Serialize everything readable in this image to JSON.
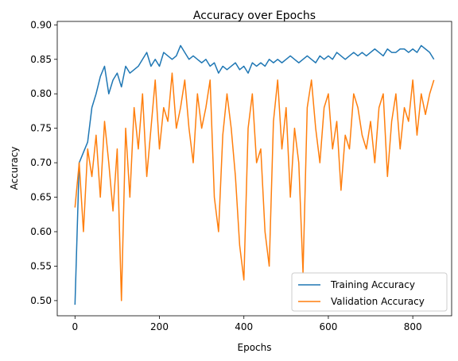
{
  "chart_data": {
    "type": "line",
    "title": "Accuracy over Epochs",
    "xlabel": "Epochs",
    "ylabel": "Accuracy",
    "xlim": [
      -42,
      892
    ],
    "ylim": [
      0.478,
      0.905
    ],
    "xticks": [
      0,
      200,
      400,
      600,
      800
    ],
    "yticks": [
      0.5,
      0.55,
      0.6,
      0.65,
      0.7,
      0.75,
      0.8,
      0.85,
      0.9
    ],
    "legend_position": "lower-right",
    "grid": false,
    "x_step": 10,
    "series": [
      {
        "name": "Training Accuracy",
        "color": "#1f77b4",
        "values": [
          0.494,
          0.7,
          0.715,
          0.73,
          0.78,
          0.8,
          0.825,
          0.84,
          0.8,
          0.82,
          0.83,
          0.81,
          0.84,
          0.83,
          0.835,
          0.84,
          0.85,
          0.86,
          0.84,
          0.85,
          0.84,
          0.86,
          0.855,
          0.85,
          0.855,
          0.87,
          0.86,
          0.85,
          0.855,
          0.85,
          0.845,
          0.85,
          0.84,
          0.845,
          0.83,
          0.84,
          0.835,
          0.84,
          0.845,
          0.835,
          0.84,
          0.83,
          0.845,
          0.84,
          0.845,
          0.84,
          0.85,
          0.845,
          0.85,
          0.845,
          0.85,
          0.855,
          0.85,
          0.845,
          0.85,
          0.855,
          0.85,
          0.845,
          0.855,
          0.85,
          0.855,
          0.85,
          0.86,
          0.855,
          0.85,
          0.855,
          0.86,
          0.855,
          0.86,
          0.855,
          0.86,
          0.865,
          0.86,
          0.855,
          0.865,
          0.86,
          0.86,
          0.865,
          0.865,
          0.86,
          0.865,
          0.86,
          0.87,
          0.865,
          0.86,
          0.85
        ]
      },
      {
        "name": "Validation Accuracy",
        "color": "#ff7f0e",
        "values": [
          0.635,
          0.7,
          0.6,
          0.72,
          0.68,
          0.74,
          0.65,
          0.76,
          0.7,
          0.63,
          0.72,
          0.5,
          0.75,
          0.65,
          0.78,
          0.72,
          0.8,
          0.68,
          0.75,
          0.82,
          0.72,
          0.78,
          0.76,
          0.83,
          0.75,
          0.78,
          0.82,
          0.75,
          0.7,
          0.8,
          0.75,
          0.78,
          0.82,
          0.65,
          0.6,
          0.74,
          0.8,
          0.75,
          0.68,
          0.58,
          0.53,
          0.75,
          0.8,
          0.7,
          0.72,
          0.6,
          0.55,
          0.76,
          0.82,
          0.72,
          0.78,
          0.65,
          0.75,
          0.7,
          0.54,
          0.78,
          0.82,
          0.75,
          0.7,
          0.78,
          0.8,
          0.72,
          0.76,
          0.66,
          0.74,
          0.72,
          0.8,
          0.78,
          0.74,
          0.72,
          0.76,
          0.7,
          0.78,
          0.8,
          0.68,
          0.76,
          0.8,
          0.72,
          0.78,
          0.76,
          0.82,
          0.74,
          0.8,
          0.77,
          0.8,
          0.82
        ]
      }
    ]
  }
}
